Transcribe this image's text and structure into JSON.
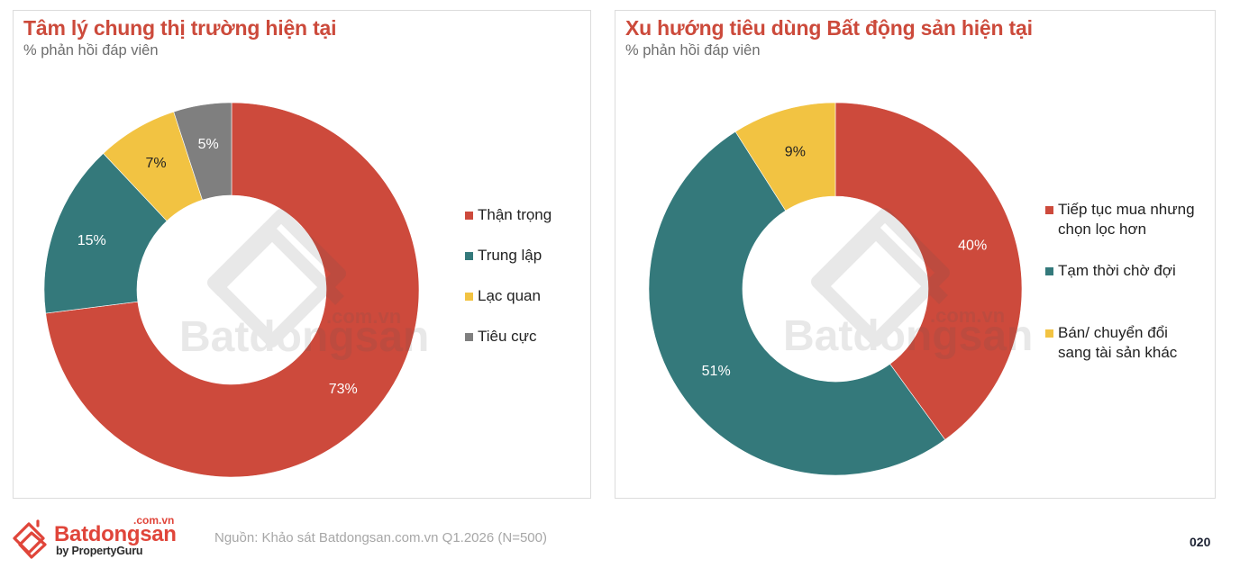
{
  "panels": [
    {
      "title": "Tâm lý chung thị trường hiện tại",
      "subtitle": "% phản hồi đáp viên",
      "legend": [
        {
          "label": "Thận trọng",
          "color": "#cd4a3c"
        },
        {
          "label": "Trung lập",
          "color": "#34797b"
        },
        {
          "label": "Lạc quan",
          "color": "#f2c342"
        },
        {
          "label": "Tiêu cực",
          "color": "#7f7f7f"
        }
      ]
    },
    {
      "title": "Xu hướng tiêu dùng Bất động sản hiện tại",
      "subtitle": "% phản hồi đáp viên",
      "legend": [
        {
          "label_line1": "Tiếp tục mua nhưng",
          "label_line2": "chọn lọc hơn",
          "color": "#cd4a3c"
        },
        {
          "label_line1": "Tạm thời chờ đợi",
          "color": "#34797b"
        },
        {
          "label_line1": "Bán/ chuyển đổi",
          "label_line2": "sang tài sản khác",
          "color": "#f2c342"
        }
      ]
    }
  ],
  "watermark": {
    "brand": "Batdongsan",
    "domain": ".com.vn"
  },
  "footer": {
    "logo_brand": "Batdongsan",
    "logo_domain": ".com.vn",
    "logo_by": "by PropertyGuru",
    "source": "Nguồn: Khảo sát Batdongsan.com.vn Q1.2026 (N=500)",
    "page_number": "020"
  },
  "chart_data": [
    {
      "type": "pie",
      "variant": "donut",
      "title": "Tâm lý chung thị trường hiện tại",
      "subtitle": "% phản hồi đáp viên",
      "categories": [
        "Thận trọng",
        "Trung lập",
        "Lạc quan",
        "Tiêu cực"
      ],
      "values": [
        73,
        15,
        7,
        5
      ],
      "labels": [
        "73%",
        "15%",
        "7%",
        "5%"
      ],
      "colors": [
        "#cd4a3c",
        "#34797b",
        "#f2c342",
        "#7f7f7f"
      ],
      "legend_position": "right",
      "start_angle": "12 o'clock, clockwise"
    },
    {
      "type": "pie",
      "variant": "donut",
      "title": "Xu hướng tiêu dùng Bất động sản hiện tại",
      "subtitle": "% phản hồi đáp viên",
      "categories": [
        "Tiếp tục mua nhưng chọn lọc hơn",
        "Tạm thời chờ đợi",
        "Bán/ chuyển đổi sang tài sản khác"
      ],
      "values": [
        40,
        51,
        9
      ],
      "labels": [
        "40%",
        "51%",
        "9%"
      ],
      "colors": [
        "#cd4a3c",
        "#34797b",
        "#f2c342"
      ],
      "legend_position": "right",
      "start_angle": "12 o'clock, clockwise"
    }
  ]
}
